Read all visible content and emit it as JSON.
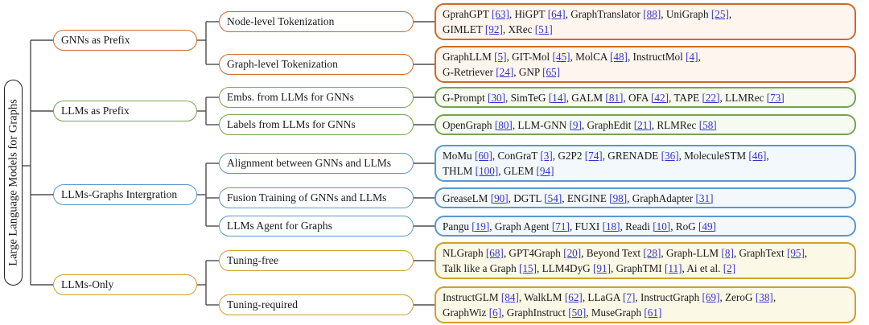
{
  "figure": {
    "root_label": "Large Language Models for Graphs"
  },
  "colors": {
    "orange": "#CB6A2B",
    "green": "#76A352",
    "blue": "#5B97CE",
    "gold": "#CDA02F",
    "orange_fill": "#FDF5EE",
    "green_fill": "#F6FAF0",
    "blue_fill": "#F3F8FC",
    "gold_fill": "#FCF8E6",
    "line": "#4D4D4D",
    "cite": "#3333CC"
  },
  "branches": [
    {
      "label": "GNNs as Prefix",
      "color": "orange",
      "children": [
        {
          "label": "Node-level Tokenization",
          "ref_lines": [
            [
              {
                "t": "GprahGPT",
                "c": "63"
              },
              {
                "t": "HiGPT",
                "c": "64"
              },
              {
                "t": "GraphTranslator",
                "c": "88"
              },
              {
                "t": "UniGraph",
                "c": "25"
              }
            ],
            [
              {
                "t": "GIMLET",
                "c": "92"
              },
              {
                "t": "XRec",
                "c": "51"
              }
            ]
          ]
        },
        {
          "label": "Graph-level Tokenization",
          "ref_lines": [
            [
              {
                "t": "GraphLLM",
                "c": "5"
              },
              {
                "t": "GIT-Mol",
                "c": "45"
              },
              {
                "t": "MolCA",
                "c": "48"
              },
              {
                "t": "InstructMol",
                "c": "4"
              }
            ],
            [
              {
                "t": "G-Retriever",
                "c": "24"
              },
              {
                "t": "GNP",
                "c": "65"
              }
            ]
          ]
        }
      ]
    },
    {
      "label": "LLMs as Prefix",
      "color": "green",
      "children": [
        {
          "label": "Embs. from LLMs for GNNs",
          "ref_lines": [
            [
              {
                "t": "G-Prompt",
                "c": "30"
              },
              {
                "t": "SimTeG",
                "c": "14"
              },
              {
                "t": "GALM",
                "c": "81"
              },
              {
                "t": "OFA",
                "c": "42"
              },
              {
                "t": "TAPE",
                "c": "22"
              },
              {
                "t": "LLMRec",
                "c": "73"
              }
            ]
          ]
        },
        {
          "label": "Labels from LLMs for GNNs",
          "ref_lines": [
            [
              {
                "t": "OpenGraph",
                "c": "80"
              },
              {
                "t": "LLM-GNN",
                "c": "9"
              },
              {
                "t": "GraphEdit",
                "c": "21"
              },
              {
                "t": "RLMRec",
                "c": "58"
              }
            ]
          ]
        }
      ]
    },
    {
      "label": "LLMs-Graphs Intergration",
      "color": "blue",
      "children": [
        {
          "label": "Alignment between GNNs and LLMs",
          "ref_lines": [
            [
              {
                "t": "MoMu",
                "c": "60"
              },
              {
                "t": "ConGraT",
                "c": "3"
              },
              {
                "t": "G2P2",
                "c": "74"
              },
              {
                "t": "GRENADE",
                "c": "36"
              },
              {
                "t": "MoleculeSTM",
                "c": "46"
              }
            ],
            [
              {
                "t": "THLM",
                "c": "100"
              },
              {
                "t": "GLEM",
                "c": "94"
              }
            ]
          ]
        },
        {
          "label": "Fusion Training of GNNs and LLMs",
          "ref_lines": [
            [
              {
                "t": "GreaseLM",
                "c": "90"
              },
              {
                "t": "DGTL",
                "c": "54"
              },
              {
                "t": "ENGINE",
                "c": "98"
              },
              {
                "t": "GraphAdapter",
                "c": "31"
              }
            ]
          ]
        },
        {
          "label": "LLMs Agent for Graphs",
          "ref_lines": [
            [
              {
                "t": "Pangu",
                "c": "19"
              },
              {
                "t": "Graph Agent",
                "c": "71"
              },
              {
                "t": "FUXI",
                "c": "18"
              },
              {
                "t": "Readi",
                "c": "10"
              },
              {
                "t": "RoG",
                "c": "49"
              }
            ]
          ]
        }
      ]
    },
    {
      "label": "LLMs-Only",
      "color": "gold",
      "children": [
        {
          "label": "Tuning-free",
          "ref_lines": [
            [
              {
                "t": "NLGraph",
                "c": "68"
              },
              {
                "t": "GPT4Graph",
                "c": "20"
              },
              {
                "t": "Beyond Text",
                "c": "28"
              },
              {
                "t": "Graph-LLM",
                "c": "8"
              },
              {
                "t": "GraphText",
                "c": "95"
              }
            ],
            [
              {
                "t": "Talk like a Graph",
                "c": "15"
              },
              {
                "t": "LLM4DyG",
                "c": "91"
              },
              {
                "t": "GraphTMI",
                "c": "11"
              },
              {
                "t": "Ai et al.",
                "c": "2"
              }
            ]
          ]
        },
        {
          "label": "Tuning-required",
          "ref_lines": [
            [
              {
                "t": "InstructGLM",
                "c": "84"
              },
              {
                "t": "WalkLM",
                "c": "62"
              },
              {
                "t": "LLaGA",
                "c": "7"
              },
              {
                "t": "InstructGraph",
                "c": "69"
              },
              {
                "t": "ZeroG",
                "c": "38"
              }
            ],
            [
              {
                "t": "GraphWiz",
                "c": "6"
              },
              {
                "t": "GraphInstruct",
                "c": "50"
              },
              {
                "t": "MuseGraph",
                "c": "61"
              }
            ]
          ]
        }
      ]
    }
  ]
}
